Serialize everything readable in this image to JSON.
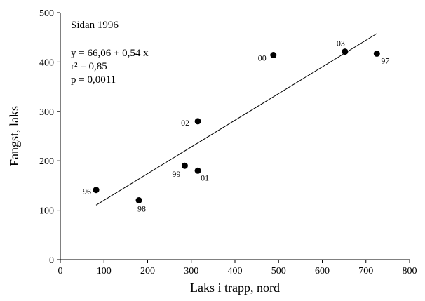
{
  "chart_data": {
    "type": "scatter",
    "xlabel": "Laks i trapp, nord",
    "ylabel": "Fangst, laks",
    "xlim": [
      0,
      800
    ],
    "ylim": [
      0,
      500
    ],
    "xticks": [
      0,
      100,
      200,
      300,
      400,
      500,
      600,
      700,
      800
    ],
    "yticks": [
      0,
      100,
      200,
      300,
      400,
      500
    ],
    "grid": false,
    "annotations": [
      "Sidan 1996",
      "y = 66,06 + 0,54 x",
      "r² = 0,85",
      "p = 0,0011"
    ],
    "points": [
      {
        "label": "96",
        "x": 82,
        "y": 141
      },
      {
        "label": "98",
        "x": 180,
        "y": 120
      },
      {
        "label": "99",
        "x": 285,
        "y": 190
      },
      {
        "label": "01",
        "x": 315,
        "y": 180
      },
      {
        "label": "02",
        "x": 315,
        "y": 280
      },
      {
        "label": "00",
        "x": 488,
        "y": 414
      },
      {
        "label": "03",
        "x": 652,
        "y": 421
      },
      {
        "label": "97",
        "x": 725,
        "y": 417
      }
    ],
    "trendline": {
      "intercept": 66.06,
      "slope": 0.54,
      "x_range": [
        82,
        725
      ]
    }
  }
}
